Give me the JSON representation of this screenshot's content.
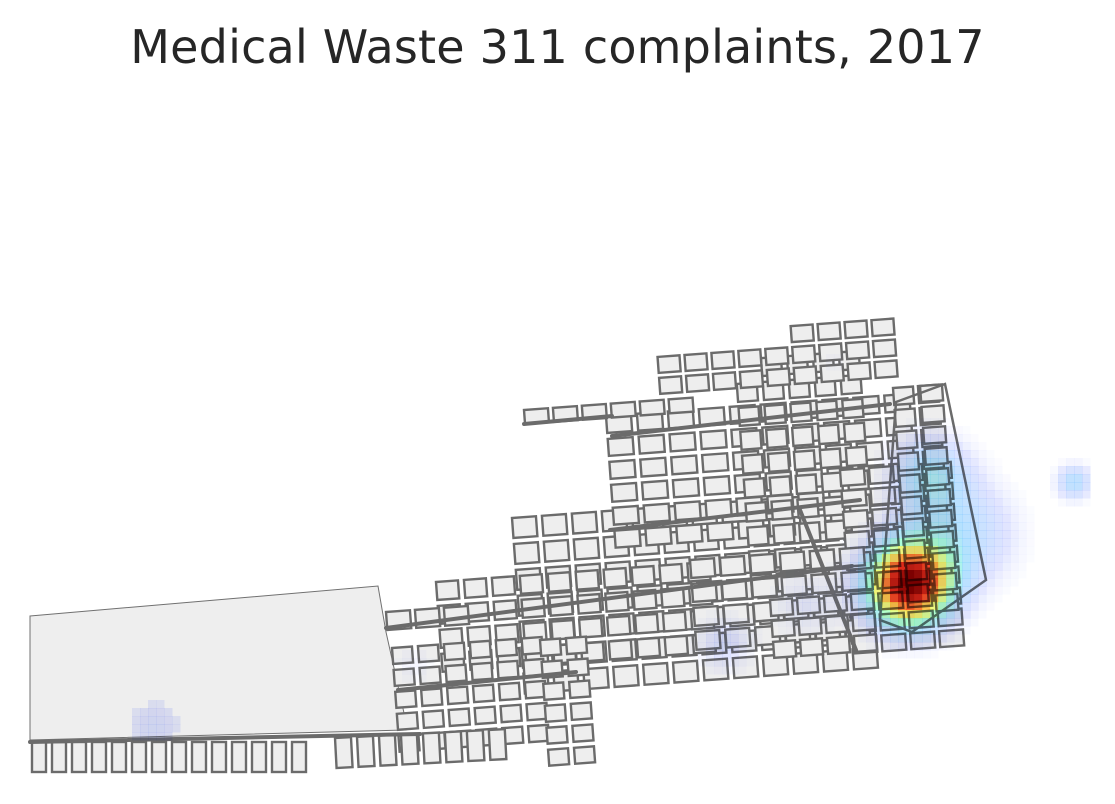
{
  "title": "Medical Waste 311 complaints, 2017",
  "colors": {
    "street": "#6b6b6b",
    "block_fill": "#eeeeee",
    "background": "#ffffff"
  },
  "colormap": "jet",
  "heatmap": {
    "hotspot": "dense cluster in the east, red core",
    "secondary": "faint lighter patches scattered to the west and far east"
  }
}
